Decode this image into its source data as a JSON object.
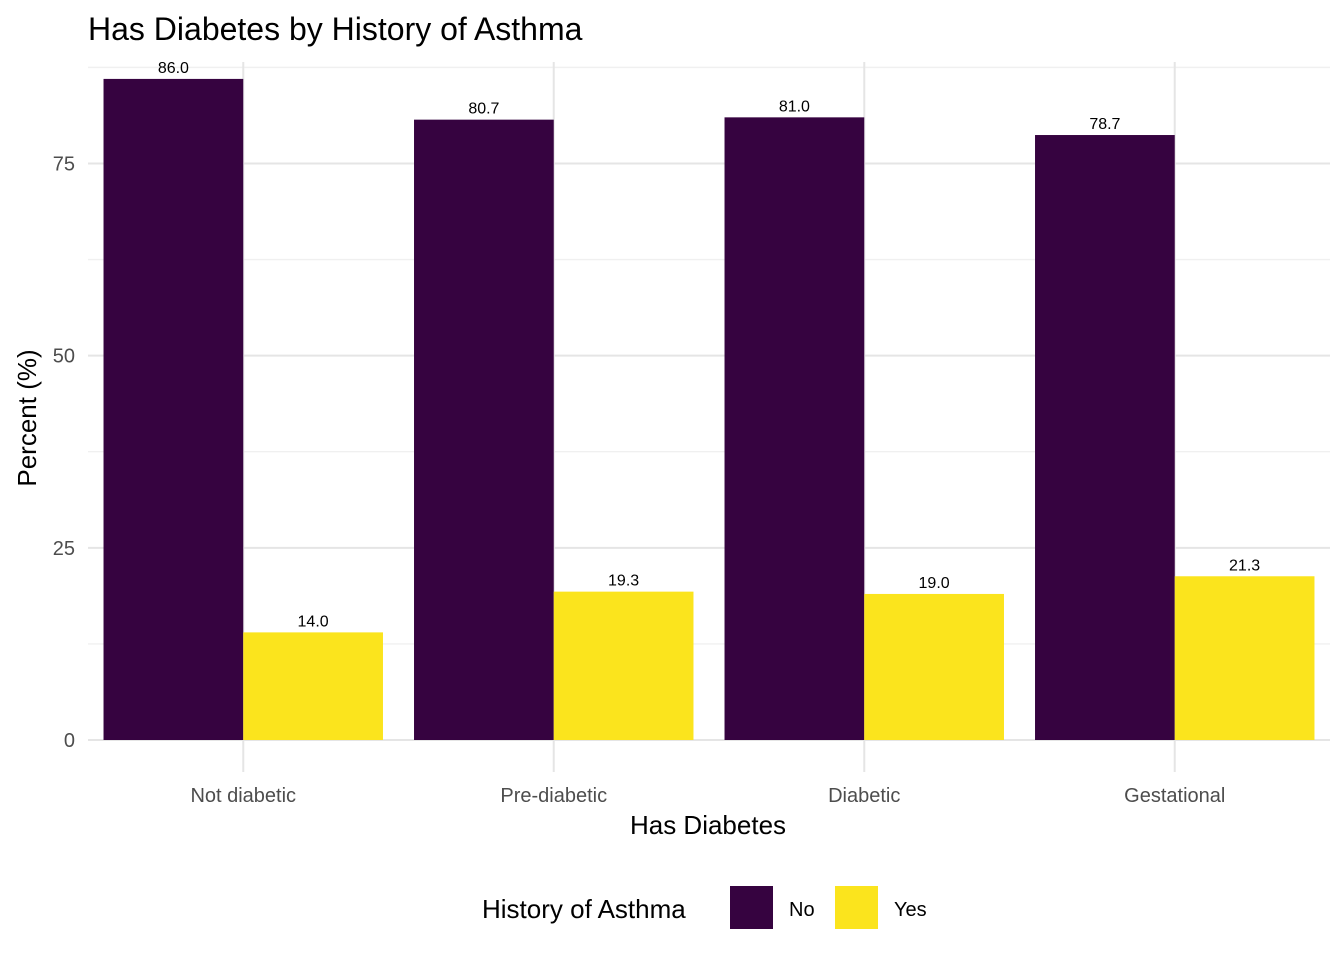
{
  "chart_data": {
    "type": "bar",
    "title": "Has Diabetes by History of Asthma",
    "xlabel": "Has Diabetes",
    "ylabel": "Percent (%)",
    "categories": [
      "Not diabetic",
      "Pre-diabetic",
      "Diabetic",
      "Gestational"
    ],
    "series": [
      {
        "name": "No",
        "color": "#360340",
        "values": [
          86.0,
          80.7,
          81.0,
          78.7
        ],
        "labels": [
          "86.0",
          "80.7",
          "81.0",
          "78.7"
        ]
      },
      {
        "name": "Yes",
        "color": "#fbe41d",
        "values": [
          14.0,
          19.3,
          19.0,
          21.3
        ],
        "labels": [
          "14.0",
          "19.3",
          "19.0",
          "21.3"
        ]
      }
    ],
    "yticks": [
      0,
      25,
      50,
      75
    ],
    "yticklabels": [
      "0",
      "25",
      "50",
      "75"
    ],
    "ylim": [
      0,
      88.2
    ],
    "grid": true,
    "legend": {
      "title": "History of Asthma",
      "position": "bottom"
    }
  }
}
